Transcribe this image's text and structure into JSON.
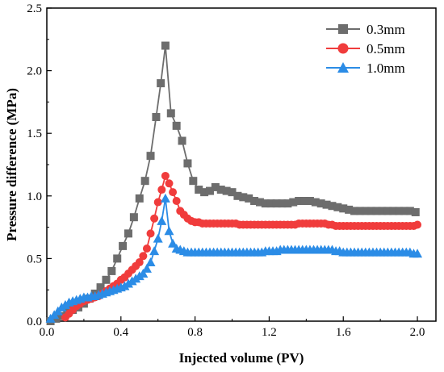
{
  "chart_data": {
    "type": "line",
    "xlabel": "Injected volume (PV)",
    "ylabel": "Pressure difference (MPa)",
    "xlim": [
      0.0,
      2.1
    ],
    "ylim": [
      0.0,
      2.5
    ],
    "xticks": [
      0.0,
      0.4,
      0.8,
      1.2,
      1.6,
      2.0
    ],
    "xtick_labels": [
      "0.0",
      "0.4",
      "0.8",
      "1.2",
      "1.6",
      "2.0"
    ],
    "yticks": [
      0.0,
      0.5,
      1.0,
      1.5,
      2.0,
      2.5
    ],
    "ytick_labels": [
      "0.0",
      "0.5",
      "1.0",
      "1.5",
      "2.0",
      "2.5"
    ],
    "grid": false,
    "legend_position": "top-right",
    "series": [
      {
        "name": "0.3mm",
        "color": "#6d6d6d",
        "marker": "square",
        "x": [
          0.02,
          0.05,
          0.08,
          0.11,
          0.14,
          0.17,
          0.2,
          0.23,
          0.26,
          0.29,
          0.32,
          0.35,
          0.38,
          0.41,
          0.44,
          0.47,
          0.5,
          0.53,
          0.56,
          0.59,
          0.615,
          0.64,
          0.67,
          0.7,
          0.73,
          0.76,
          0.79,
          0.82,
          0.85,
          0.88,
          0.91,
          0.94,
          0.97,
          1.0,
          1.03,
          1.06,
          1.09,
          1.12,
          1.15,
          1.18,
          1.21,
          1.24,
          1.27,
          1.3,
          1.33,
          1.36,
          1.39,
          1.42,
          1.45,
          1.48,
          1.51,
          1.54,
          1.57,
          1.6,
          1.63,
          1.66,
          1.69,
          1.72,
          1.75,
          1.78,
          1.81,
          1.84,
          1.87,
          1.9,
          1.93,
          1.96,
          1.99
        ],
        "y": [
          0.0,
          0.02,
          0.04,
          0.07,
          0.09,
          0.11,
          0.14,
          0.18,
          0.22,
          0.27,
          0.33,
          0.4,
          0.5,
          0.6,
          0.7,
          0.83,
          0.98,
          1.12,
          1.32,
          1.63,
          1.9,
          2.2,
          1.66,
          1.56,
          1.44,
          1.26,
          1.12,
          1.05,
          1.03,
          1.04,
          1.07,
          1.05,
          1.04,
          1.03,
          1.0,
          0.99,
          0.98,
          0.96,
          0.95,
          0.94,
          0.94,
          0.94,
          0.94,
          0.94,
          0.95,
          0.96,
          0.96,
          0.96,
          0.95,
          0.94,
          0.93,
          0.92,
          0.91,
          0.9,
          0.89,
          0.88,
          0.88,
          0.88,
          0.88,
          0.88,
          0.88,
          0.88,
          0.88,
          0.88,
          0.88,
          0.88,
          0.87
        ]
      },
      {
        "name": "0.5mm",
        "color": "#f03c3c",
        "marker": "circle",
        "x": [
          0.1,
          0.12,
          0.14,
          0.16,
          0.18,
          0.2,
          0.22,
          0.24,
          0.26,
          0.28,
          0.3,
          0.32,
          0.34,
          0.36,
          0.38,
          0.4,
          0.42,
          0.44,
          0.46,
          0.48,
          0.5,
          0.52,
          0.54,
          0.56,
          0.58,
          0.6,
          0.62,
          0.64,
          0.66,
          0.68,
          0.7,
          0.72,
          0.74,
          0.76,
          0.78,
          0.8,
          0.82,
          0.84,
          0.86,
          0.88,
          0.9,
          0.92,
          0.94,
          0.96,
          0.98,
          1.0,
          1.02,
          1.04,
          1.06,
          1.08,
          1.1,
          1.12,
          1.14,
          1.16,
          1.18,
          1.2,
          1.22,
          1.24,
          1.26,
          1.28,
          1.3,
          1.32,
          1.34,
          1.36,
          1.38,
          1.4,
          1.42,
          1.44,
          1.46,
          1.48,
          1.5,
          1.52,
          1.54,
          1.56,
          1.58,
          1.6,
          1.62,
          1.64,
          1.66,
          1.68,
          1.7,
          1.72,
          1.74,
          1.76,
          1.78,
          1.8,
          1.82,
          1.84,
          1.86,
          1.88,
          1.9,
          1.92,
          1.94,
          1.96,
          1.98,
          2.0
        ],
        "y": [
          0.03,
          0.06,
          0.09,
          0.12,
          0.14,
          0.16,
          0.17,
          0.18,
          0.19,
          0.2,
          0.22,
          0.24,
          0.26,
          0.28,
          0.3,
          0.33,
          0.35,
          0.38,
          0.41,
          0.44,
          0.47,
          0.52,
          0.58,
          0.7,
          0.82,
          0.95,
          1.05,
          1.16,
          1.1,
          1.03,
          0.96,
          0.88,
          0.85,
          0.82,
          0.8,
          0.79,
          0.79,
          0.78,
          0.78,
          0.78,
          0.78,
          0.78,
          0.78,
          0.78,
          0.78,
          0.78,
          0.78,
          0.77,
          0.77,
          0.77,
          0.77,
          0.77,
          0.77,
          0.77,
          0.77,
          0.77,
          0.77,
          0.77,
          0.77,
          0.77,
          0.77,
          0.77,
          0.77,
          0.78,
          0.78,
          0.78,
          0.78,
          0.78,
          0.78,
          0.78,
          0.78,
          0.77,
          0.77,
          0.76,
          0.76,
          0.76,
          0.76,
          0.76,
          0.76,
          0.76,
          0.76,
          0.76,
          0.76,
          0.76,
          0.76,
          0.76,
          0.76,
          0.76,
          0.76,
          0.76,
          0.76,
          0.76,
          0.76,
          0.76,
          0.76,
          0.77
        ]
      },
      {
        "name": "1.0mm",
        "color": "#2b8ce6",
        "marker": "triangle",
        "x": [
          0.02,
          0.04,
          0.06,
          0.08,
          0.1,
          0.12,
          0.14,
          0.16,
          0.18,
          0.2,
          0.22,
          0.24,
          0.26,
          0.28,
          0.3,
          0.32,
          0.34,
          0.36,
          0.38,
          0.4,
          0.42,
          0.44,
          0.46,
          0.48,
          0.5,
          0.52,
          0.54,
          0.56,
          0.58,
          0.6,
          0.62,
          0.64,
          0.66,
          0.68,
          0.7,
          0.72,
          0.74,
          0.76,
          0.78,
          0.8,
          0.82,
          0.84,
          0.86,
          0.88,
          0.9,
          0.92,
          0.94,
          0.96,
          0.98,
          1.0,
          1.02,
          1.04,
          1.06,
          1.08,
          1.1,
          1.12,
          1.14,
          1.16,
          1.18,
          1.2,
          1.22,
          1.24,
          1.26,
          1.28,
          1.3,
          1.32,
          1.34,
          1.36,
          1.38,
          1.4,
          1.42,
          1.44,
          1.46,
          1.48,
          1.5,
          1.52,
          1.54,
          1.56,
          1.58,
          1.6,
          1.62,
          1.64,
          1.66,
          1.68,
          1.7,
          1.72,
          1.74,
          1.76,
          1.78,
          1.8,
          1.82,
          1.84,
          1.86,
          1.88,
          1.9,
          1.92,
          1.94,
          1.96,
          1.98,
          2.0
        ],
        "y": [
          0.02,
          0.05,
          0.08,
          0.11,
          0.13,
          0.15,
          0.16,
          0.17,
          0.18,
          0.19,
          0.19,
          0.2,
          0.2,
          0.21,
          0.22,
          0.23,
          0.24,
          0.25,
          0.26,
          0.27,
          0.28,
          0.3,
          0.32,
          0.34,
          0.36,
          0.38,
          0.42,
          0.47,
          0.56,
          0.66,
          0.8,
          0.98,
          0.72,
          0.62,
          0.58,
          0.57,
          0.56,
          0.55,
          0.55,
          0.55,
          0.55,
          0.55,
          0.55,
          0.55,
          0.55,
          0.55,
          0.55,
          0.55,
          0.55,
          0.55,
          0.55,
          0.55,
          0.55,
          0.55,
          0.55,
          0.55,
          0.55,
          0.55,
          0.56,
          0.56,
          0.56,
          0.56,
          0.57,
          0.57,
          0.57,
          0.57,
          0.57,
          0.57,
          0.57,
          0.57,
          0.57,
          0.57,
          0.57,
          0.57,
          0.57,
          0.57,
          0.57,
          0.56,
          0.56,
          0.55,
          0.55,
          0.55,
          0.55,
          0.55,
          0.55,
          0.55,
          0.55,
          0.55,
          0.55,
          0.55,
          0.55,
          0.55,
          0.55,
          0.55,
          0.55,
          0.55,
          0.55,
          0.55,
          0.54,
          0.54
        ]
      }
    ]
  }
}
